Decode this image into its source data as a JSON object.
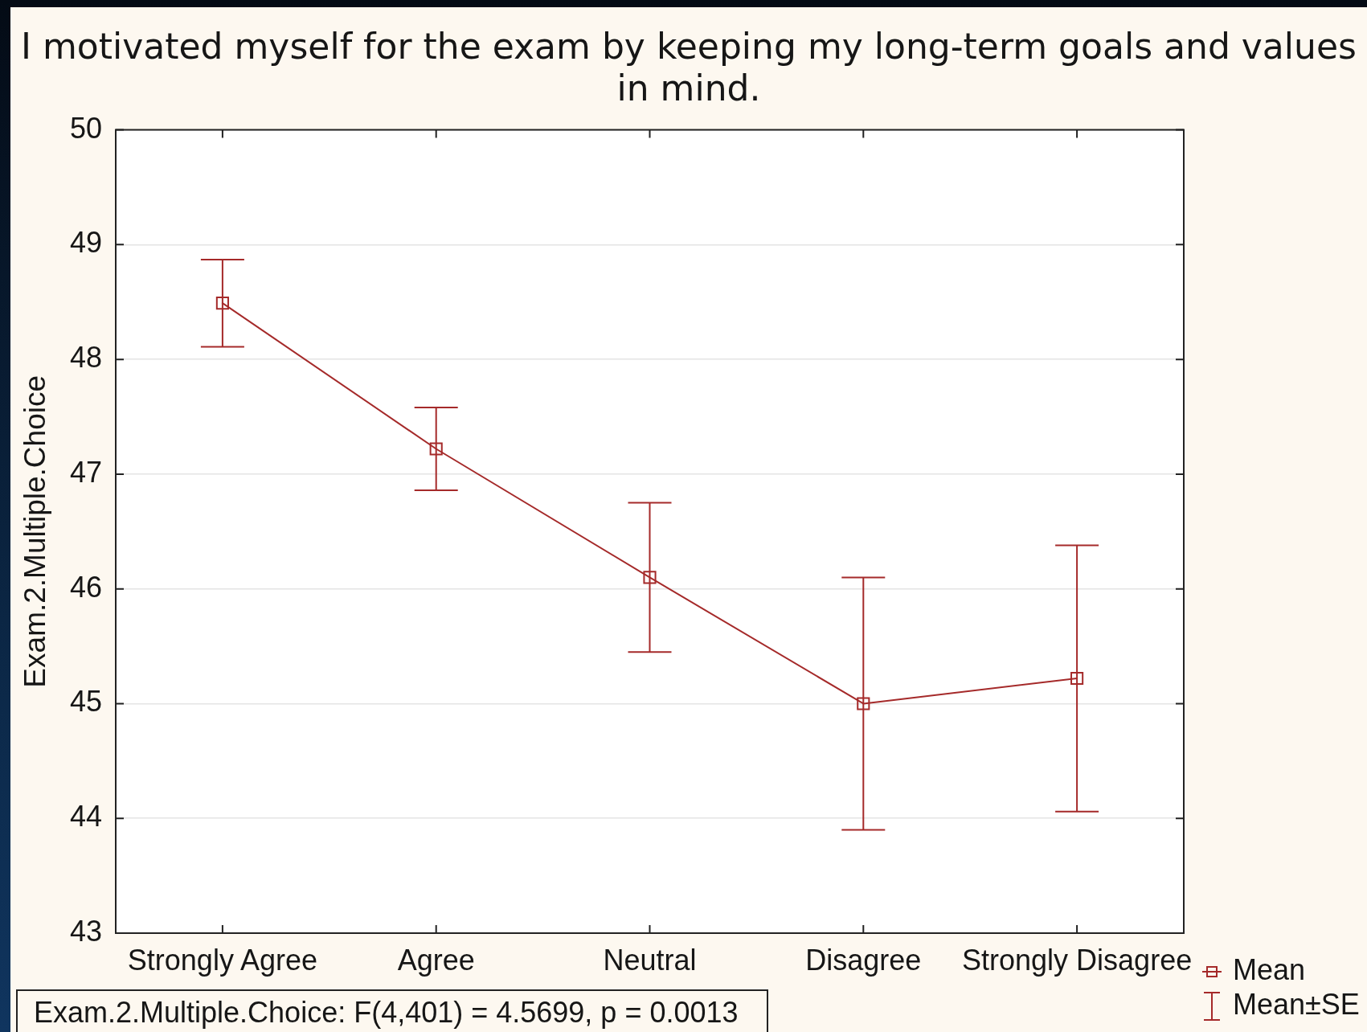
{
  "chart_data": {
    "type": "line",
    "title": "I motivated myself for the exam by keeping my long-term goals and values in mind.",
    "ylabel": "Exam.2.Multiple.Choice",
    "categories": [
      "Strongly Agree",
      "Agree",
      "Neutral",
      "Disagree",
      "Strongly Disagree"
    ],
    "series": [
      {
        "name": "Mean",
        "color": "#a52a2a",
        "values": [
          48.49,
          47.22,
          46.1,
          45.0,
          45.22
        ],
        "errors": [
          0.38,
          0.36,
          0.65,
          1.1,
          1.16
        ]
      }
    ],
    "ylim": [
      43,
      50
    ],
    "yticks": [
      43,
      44,
      45,
      46,
      47,
      48,
      49,
      50
    ],
    "grid": "y",
    "legend": "bottom right",
    "marker": "square",
    "line_style": "solid",
    "annotations": [
      "Exam.2.Multiple.Choice: F(4,401) = 4.5699, p = 0.0013",
      "Mean±SE"
    ]
  }
}
